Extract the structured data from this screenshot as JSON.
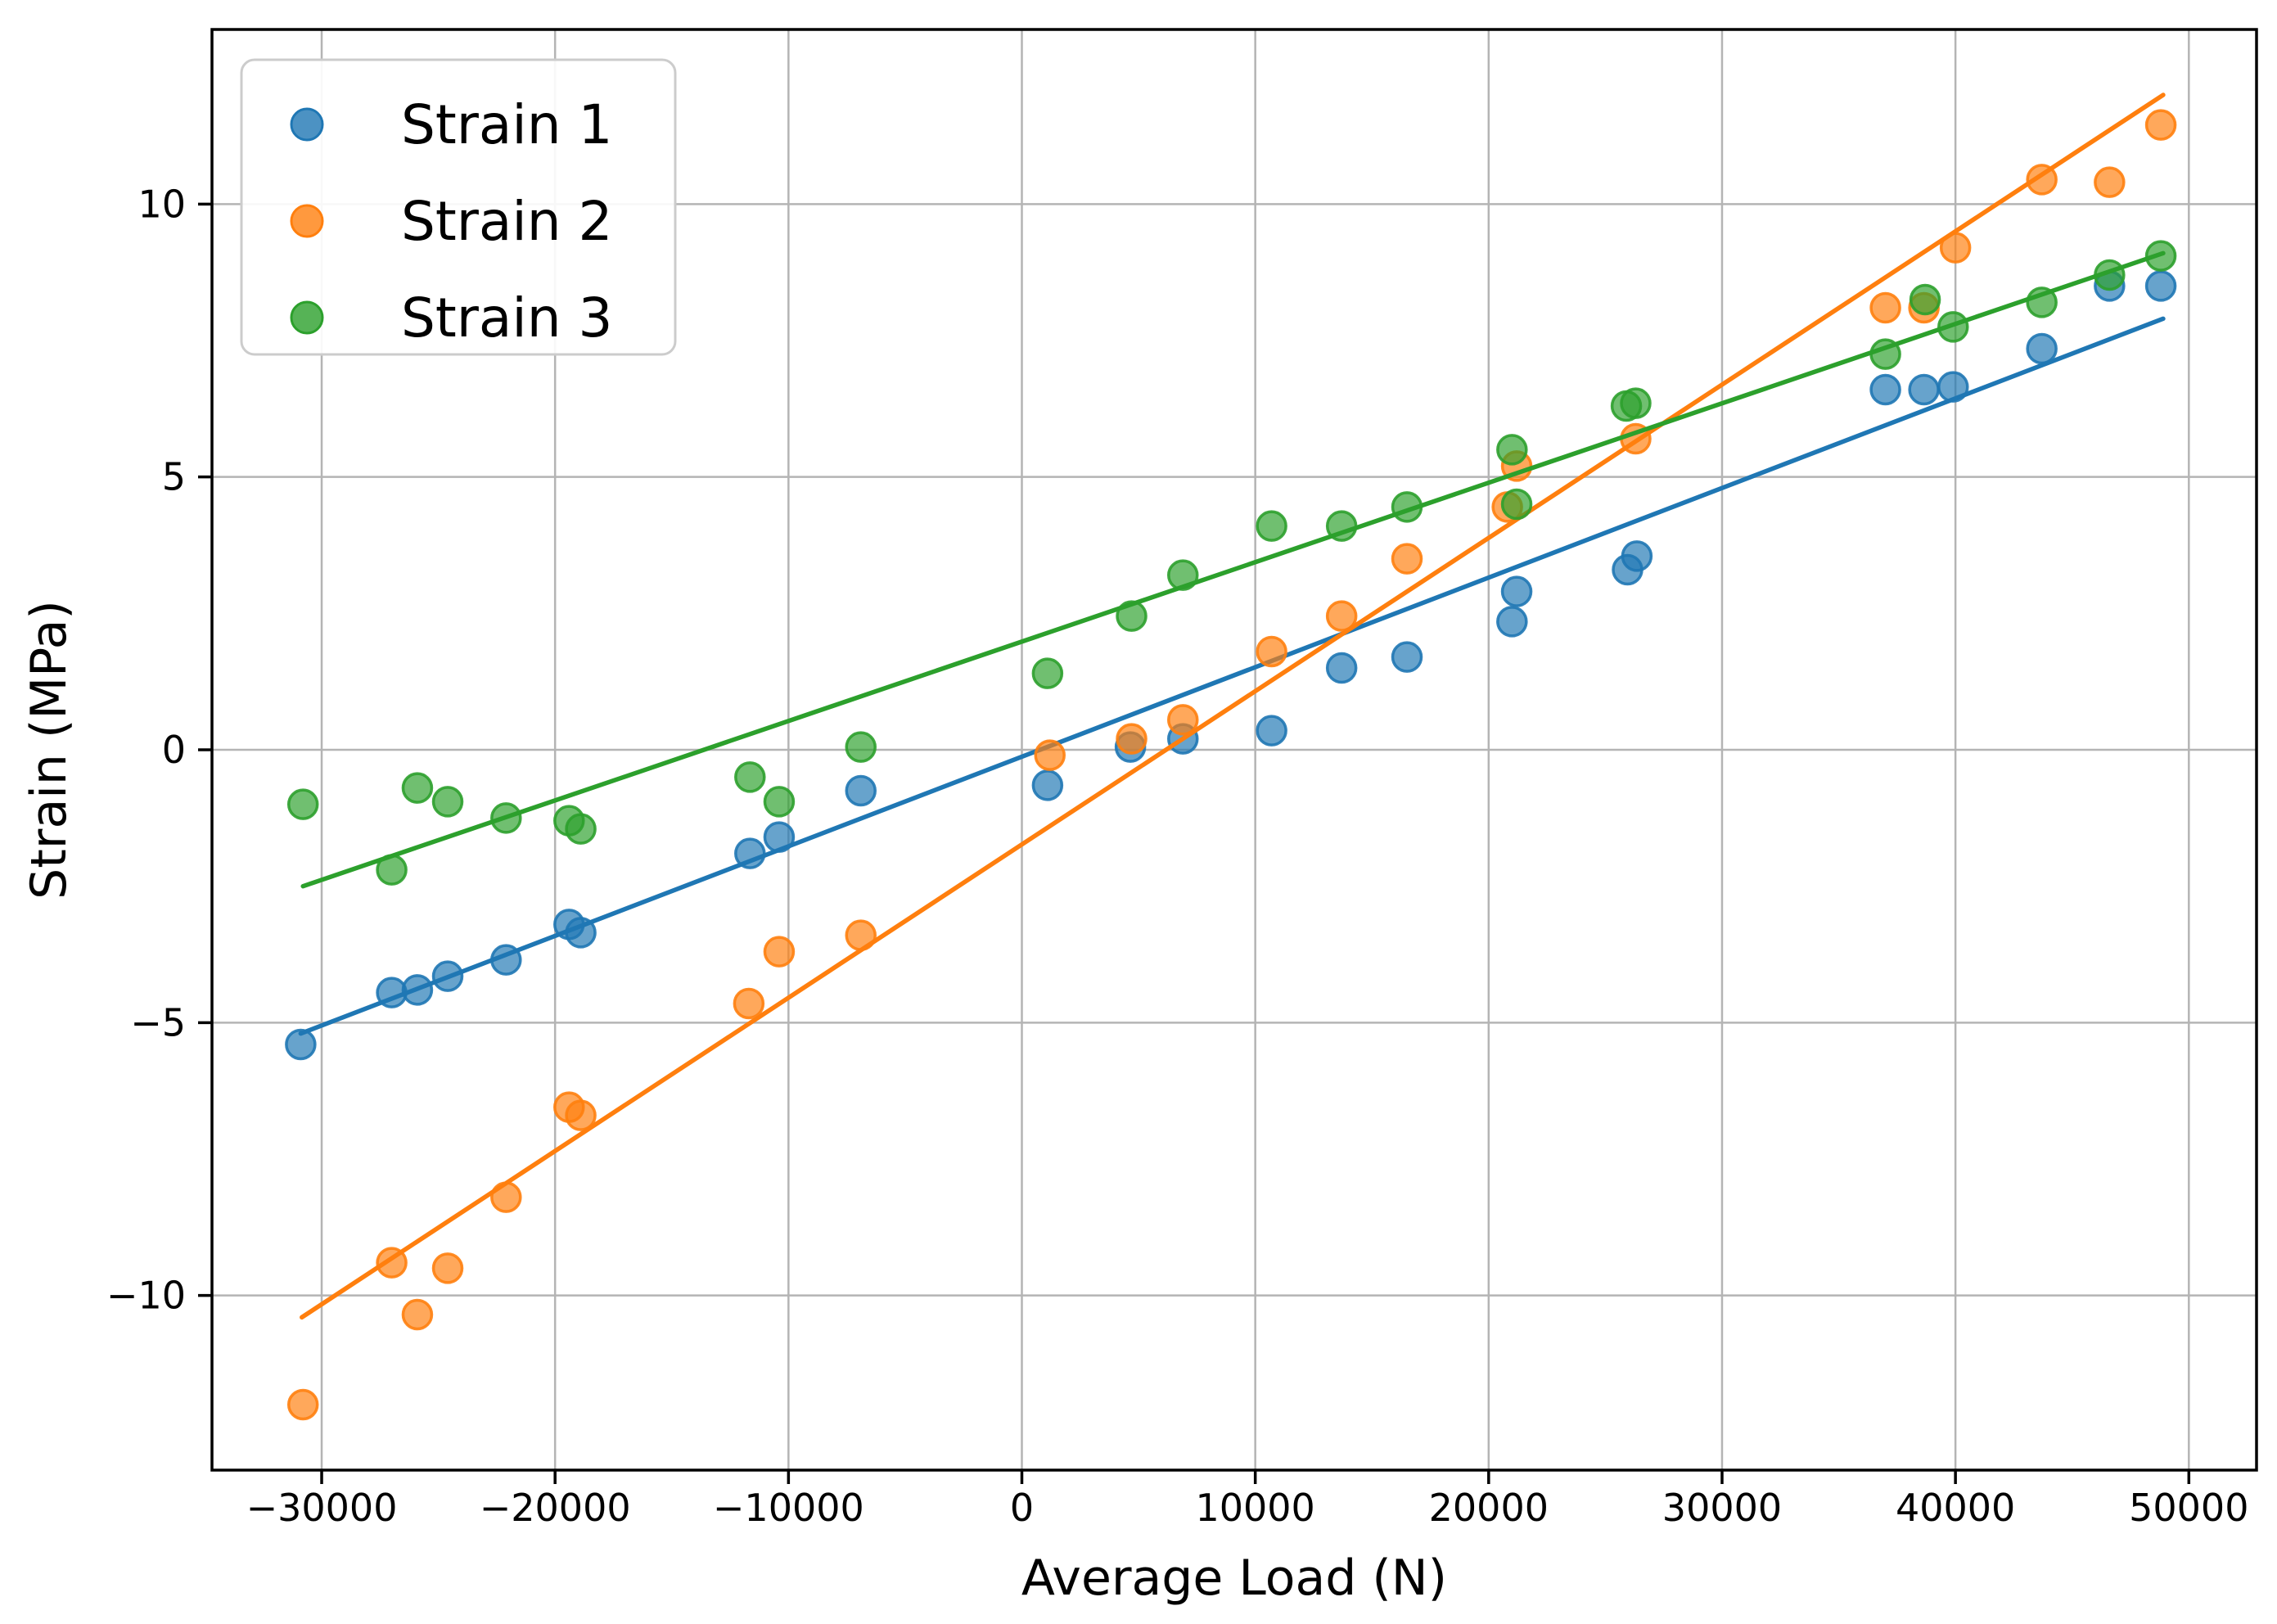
{
  "figure": {
    "background": "#ffffff",
    "grid_color": "#b4b4b4",
    "spine_color": "#000000",
    "legend_border_color": "#cccccc",
    "legend_background": "#ffffff"
  },
  "chart_data": {
    "type": "scatter",
    "title": "",
    "xlabel": "Average Load (N)",
    "ylabel": "Strain (MPa)",
    "xlim": [
      -34700,
      52900
    ],
    "ylim": [
      -13.2,
      13.2
    ],
    "grid": true,
    "legend_position": "upper-left",
    "x_ticks": {
      "values": [
        -30000,
        -20000,
        -10000,
        0,
        10000,
        20000,
        30000,
        40000,
        50000
      ],
      "labels": [
        "−30000",
        "−20000",
        "−10000",
        "0",
        "10000",
        "20000",
        "30000",
        "40000",
        "50000"
      ]
    },
    "y_ticks": {
      "values": [
        -10,
        -5,
        0,
        5,
        10
      ],
      "labels": [
        "−10",
        "−5",
        "0",
        "5",
        "10"
      ]
    },
    "series": [
      {
        "name": "Strain 1",
        "color": "#1f77b4",
        "marker": "circle",
        "points": [
          [
            -30900,
            -5.4
          ],
          [
            -27000,
            -4.45
          ],
          [
            -25900,
            -4.4
          ],
          [
            -24600,
            -4.15
          ],
          [
            -22100,
            -3.85
          ],
          [
            -19400,
            -3.2
          ],
          [
            -18900,
            -3.35
          ],
          [
            -11650,
            -1.9
          ],
          [
            -10400,
            -1.6
          ],
          [
            -6900,
            -0.75
          ],
          [
            1100,
            -0.65
          ],
          [
            4650,
            0.05
          ],
          [
            6900,
            0.2
          ],
          [
            10700,
            0.35
          ],
          [
            13700,
            1.5
          ],
          [
            16500,
            1.7
          ],
          [
            21000,
            2.35
          ],
          [
            21200,
            2.9
          ],
          [
            25950,
            3.3
          ],
          [
            26350,
            3.55
          ],
          [
            37000,
            6.6
          ],
          [
            38650,
            6.6
          ],
          [
            39900,
            6.65
          ],
          [
            43700,
            7.35
          ],
          [
            46600,
            8.5
          ],
          [
            48800,
            8.5
          ]
        ],
        "trend_line": {
          "x1": -30900,
          "y1": -5.2,
          "x2": 48900,
          "y2": 7.9
        }
      },
      {
        "name": "Strain 2",
        "color": "#ff7f0e",
        "marker": "circle",
        "points": [
          [
            -30800,
            -12.0
          ],
          [
            -27000,
            -9.4
          ],
          [
            -25900,
            -10.35
          ],
          [
            -24600,
            -9.5
          ],
          [
            -22100,
            -8.2
          ],
          [
            -19400,
            -6.55
          ],
          [
            -18900,
            -6.7
          ],
          [
            -11700,
            -4.65
          ],
          [
            -10400,
            -3.7
          ],
          [
            -6900,
            -3.4
          ],
          [
            1200,
            -0.1
          ],
          [
            4700,
            0.2
          ],
          [
            6900,
            0.55
          ],
          [
            10700,
            1.8
          ],
          [
            13700,
            2.45
          ],
          [
            16500,
            3.5
          ],
          [
            20800,
            4.45
          ],
          [
            21200,
            5.2
          ],
          [
            26300,
            5.7
          ],
          [
            37000,
            8.1
          ],
          [
            38650,
            8.1
          ],
          [
            40000,
            9.2
          ],
          [
            43700,
            10.45
          ],
          [
            46600,
            10.4
          ],
          [
            48800,
            11.45
          ]
        ],
        "trend_line": {
          "x1": -30850,
          "y1": -10.4,
          "x2": 48900,
          "y2": 12.0
        }
      },
      {
        "name": "Strain 3",
        "color": "#2ca02c",
        "marker": "circle",
        "points": [
          [
            -30800,
            -1.0
          ],
          [
            -27000,
            -2.2
          ],
          [
            -25900,
            -0.7
          ],
          [
            -24600,
            -0.95
          ],
          [
            -22100,
            -1.25
          ],
          [
            -19400,
            -1.3
          ],
          [
            -18900,
            -1.45
          ],
          [
            -11650,
            -0.5
          ],
          [
            -10400,
            -0.95
          ],
          [
            -6900,
            0.05
          ],
          [
            1100,
            1.4
          ],
          [
            4700,
            2.45
          ],
          [
            6900,
            3.2
          ],
          [
            10700,
            4.1
          ],
          [
            13700,
            4.1
          ],
          [
            16500,
            4.45
          ],
          [
            21000,
            5.5
          ],
          [
            21200,
            4.5
          ],
          [
            25900,
            6.3
          ],
          [
            26300,
            6.35
          ],
          [
            37000,
            7.25
          ],
          [
            38700,
            8.25
          ],
          [
            39900,
            7.75
          ],
          [
            43700,
            8.2
          ],
          [
            46600,
            8.7
          ],
          [
            48800,
            9.05
          ]
        ],
        "trend_line": {
          "x1": -30800,
          "y1": -2.5,
          "x2": 48900,
          "y2": 9.1
        }
      }
    ]
  }
}
